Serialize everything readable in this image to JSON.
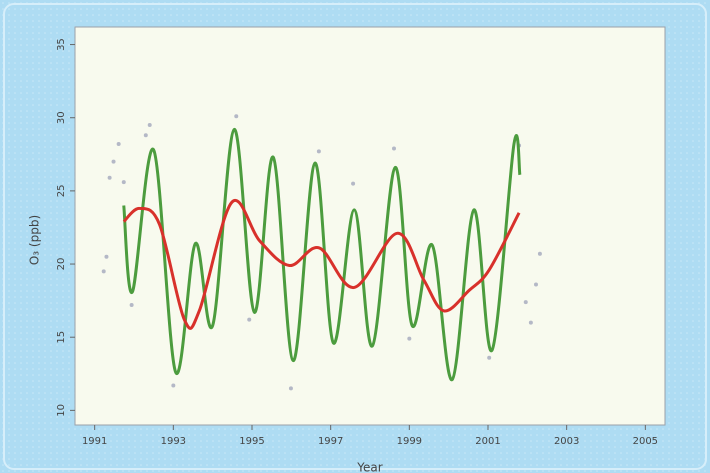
{
  "chart_data": {
    "type": "line",
    "xlabel": "Year",
    "ylabel": "O₃ (ppb)",
    "xlim": [
      1990.5,
      2005.5
    ],
    "ylim": [
      9,
      36.2
    ],
    "xticks": [
      1991,
      1993,
      1995,
      1997,
      1999,
      2001,
      2003,
      2005
    ],
    "yticks": [
      10,
      15,
      20,
      25,
      30,
      35
    ],
    "series": [
      {
        "type": "scatter",
        "color": "#b4b8c6",
        "x": [
          1991.23,
          1991.3,
          1991.38,
          1991.48,
          1991.61,
          1991.74,
          1991.94,
          1992.3,
          1992.4,
          1993.0,
          1994.6,
          1994.93,
          1995.99,
          1996.7,
          1997.57,
          1998.61,
          1999.0,
          2001.03,
          2001.79,
          2001.96,
          2002.09,
          2002.22,
          2002.32
        ],
        "values": [
          19.5,
          20.5,
          25.9,
          27.0,
          28.2,
          25.6,
          17.2,
          28.8,
          29.5,
          11.7,
          30.1,
          16.2,
          11.5,
          27.7,
          25.5,
          27.9,
          14.9,
          13.6,
          28.1,
          17.4,
          16.0,
          18.6,
          20.7
        ]
      },
      {
        "type": "line",
        "color": "#4c9c3e",
        "x": [
          1991.74,
          1991.96,
          1992.5,
          1993.06,
          1993.56,
          1994.0,
          1994.55,
          1995.06,
          1995.54,
          1996.05,
          1996.6,
          1997.07,
          1997.6,
          1998.06,
          1998.64,
          1999.07,
          1999.58,
          2000.09,
          2000.64,
          2001.1,
          2001.66,
          2001.81
        ],
        "values": [
          24.0,
          18.1,
          27.8,
          12.6,
          21.4,
          15.8,
          29.2,
          16.7,
          27.3,
          13.4,
          26.9,
          14.6,
          23.7,
          14.4,
          26.6,
          15.8,
          21.3,
          12.1,
          23.7,
          14.1,
          28.2,
          26.1
        ]
      },
      {
        "type": "line",
        "color": "#d8312b",
        "x": [
          1991.74,
          1992.14,
          1992.65,
          1993.28,
          1993.66,
          1994.48,
          1995.19,
          1995.95,
          1996.71,
          1997.6,
          1998.69,
          1999.37,
          1999.88,
          2000.52,
          2001.03,
          2001.79
        ],
        "values": [
          22.9,
          23.8,
          22.7,
          16.2,
          16.8,
          24.2,
          21.6,
          19.9,
          21.1,
          18.4,
          22.1,
          18.9,
          16.8,
          18.2,
          19.6,
          23.5
        ]
      }
    ]
  }
}
